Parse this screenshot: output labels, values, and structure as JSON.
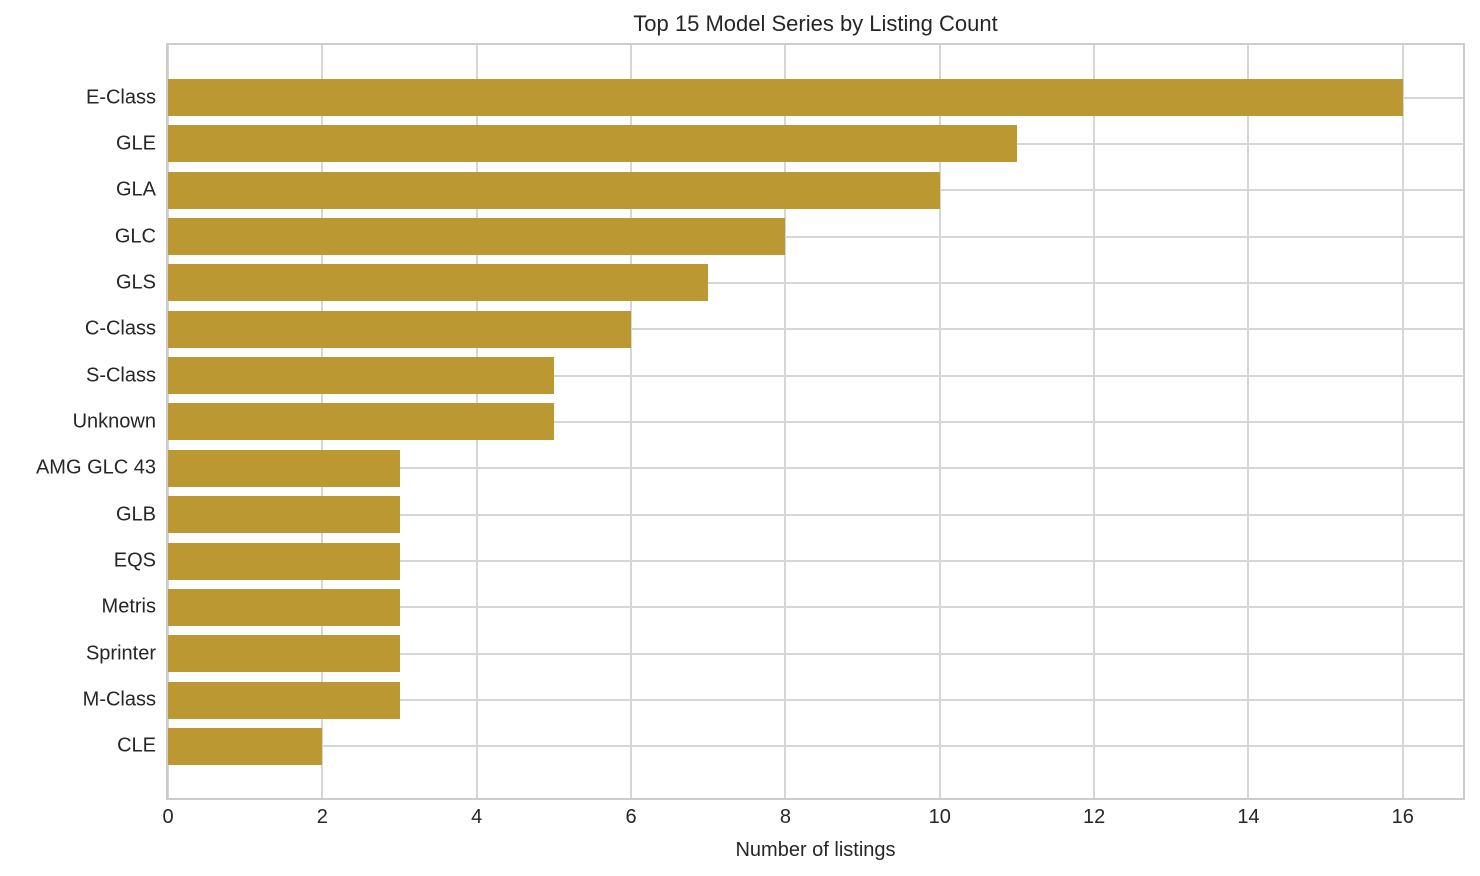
{
  "figure": {
    "background_color": "#ffffff",
    "text_color": "#262626",
    "grid_color": "#d6d6d6",
    "spine_color": "#cccccc"
  },
  "chart_data": {
    "type": "bar",
    "orientation": "horizontal",
    "title": "Top 15 Model Series by Listing Count",
    "xlabel": "Number of listings",
    "ylabel": "",
    "categories": [
      "E-Class",
      "GLE",
      "GLA",
      "GLC",
      "GLS",
      "C-Class",
      "S-Class",
      "Unknown",
      "AMG GLC 43",
      "GLB",
      "EQS",
      "Metris",
      "Sprinter",
      "M-Class",
      "CLE"
    ],
    "values": [
      16,
      11,
      10,
      8,
      7,
      6,
      5,
      5,
      3,
      3,
      3,
      3,
      3,
      3,
      2
    ],
    "xticks": [
      0,
      2,
      4,
      6,
      8,
      10,
      12,
      14,
      16
    ],
    "xlim": [
      0,
      16.78
    ],
    "bar_color": "#bc9832",
    "grid": true,
    "legend_position": "none"
  }
}
